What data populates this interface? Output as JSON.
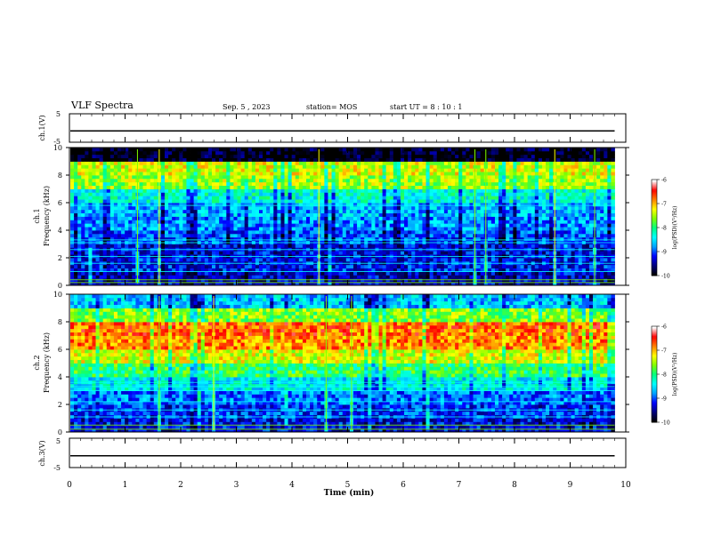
{
  "header": {
    "title": "VLF Spectra",
    "date": "Sep. 5 , 2023",
    "station": "station= MOS",
    "start": "start UT =  8 : 10 : 1"
  },
  "chart_data": [
    {
      "type": "line",
      "name": "ch.1 waveform",
      "ylabel": "ch.1(V)",
      "ylim": [
        -5,
        5
      ],
      "yticks": [
        "5",
        "-5"
      ],
      "x": [
        0,
        9.8
      ],
      "values": [
        -1,
        -1
      ]
    },
    {
      "type": "heatmap",
      "name": "ch.1 spectrogram",
      "ylabel": "ch.1",
      "ylabel2": "Frequency (kHz)",
      "xlim": [
        0,
        9.8
      ],
      "ylim": [
        0,
        10
      ],
      "yticks": [
        "0",
        "2",
        "4",
        "6",
        "8",
        "10"
      ],
      "colorbar": {
        "label": "log(PSD)(V²/Hz)",
        "ticks": [
          "-6",
          "-7",
          "-8",
          "-9",
          "-10"
        ],
        "range": [
          -10,
          -6
        ]
      },
      "profile": [
        {
          "f": 0.5,
          "v": -9.4
        },
        {
          "f": 1.5,
          "v": -9.2
        },
        {
          "f": 2.5,
          "v": -9.3
        },
        {
          "f": 3.5,
          "v": -9.0
        },
        {
          "f": 4.5,
          "v": -8.8
        },
        {
          "f": 5.5,
          "v": -8.7
        },
        {
          "f": 6.5,
          "v": -8.3
        },
        {
          "f": 7.5,
          "v": -7.5
        },
        {
          "f": 8.5,
          "v": -7.3
        },
        {
          "f": 9.5,
          "v": -9.9
        }
      ],
      "lines_khz": [
        0.2,
        0.4,
        1.0,
        1.6,
        2.1,
        2.6,
        3.1,
        3.3,
        5.8
      ]
    },
    {
      "type": "heatmap",
      "name": "ch.2 spectrogram",
      "ylabel": "ch.2",
      "ylabel2": "Frequency (kHz)",
      "xlim": [
        0,
        9.8
      ],
      "ylim": [
        0,
        10
      ],
      "yticks": [
        "0",
        "2",
        "4",
        "6",
        "8",
        "10"
      ],
      "colorbar": {
        "label": "log(PSD)(V²/Hz)",
        "ticks": [
          "-6",
          "-7",
          "-8",
          "-9",
          "-10"
        ],
        "range": [
          -10,
          -6
        ]
      },
      "profile": [
        {
          "f": 0.5,
          "v": -9.3
        },
        {
          "f": 1.5,
          "v": -9.1
        },
        {
          "f": 2.5,
          "v": -8.9
        },
        {
          "f": 3.5,
          "v": -8.4
        },
        {
          "f": 4.5,
          "v": -7.9
        },
        {
          "f": 5.5,
          "v": -7.3
        },
        {
          "f": 6.5,
          "v": -6.8
        },
        {
          "f": 7.5,
          "v": -6.7
        },
        {
          "f": 8.5,
          "v": -7.6
        },
        {
          "f": 9.5,
          "v": -8.6
        }
      ],
      "lines_khz": [
        0.2,
        0.5,
        1.1,
        1.6,
        2.2,
        3.0,
        3.3,
        3.6
      ]
    },
    {
      "type": "line",
      "name": "ch.3 waveform",
      "ylabel": "ch.3(V)",
      "ylim": [
        -5,
        5
      ],
      "yticks": [
        "5",
        "-5"
      ],
      "x": [
        0,
        9.8
      ],
      "values": [
        -1,
        -1
      ],
      "xlabel": "Time (min)",
      "xticks": [
        "0",
        "1",
        "2",
        "3",
        "4",
        "5",
        "6",
        "7",
        "8",
        "9",
        "10"
      ],
      "xlim": [
        0,
        10
      ]
    }
  ],
  "colormap": [
    "#000000",
    "#00007a",
    "#0000ff",
    "#00a0ff",
    "#00ffff",
    "#00ff80",
    "#80ff00",
    "#ffff00",
    "#ff8000",
    "#ff0000",
    "#ffffff"
  ]
}
